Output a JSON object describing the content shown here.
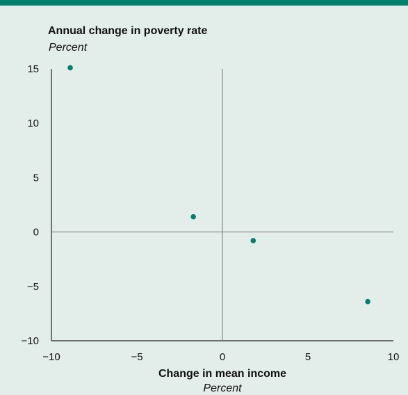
{
  "colors": {
    "background": "#e3edea",
    "accent": "#00826f",
    "axis": "#777777"
  },
  "chart_data": {
    "type": "scatter",
    "title": "Annual change in poverty rate",
    "y_unit": "Percent",
    "xlabel": "Change in mean income",
    "x_unit": "Percent",
    "xlim": [
      -10,
      10
    ],
    "ylim": [
      -10,
      15
    ],
    "x_ticks": [
      -10,
      -5,
      0,
      5,
      10
    ],
    "y_ticks": [
      15,
      10,
      5,
      0,
      -5,
      -10
    ],
    "x_tick_labels": [
      "−10",
      "−5",
      "0",
      "5",
      "10"
    ],
    "y_tick_labels": [
      "15",
      "10",
      "5",
      "0",
      "−5",
      "−10"
    ],
    "grid": false,
    "points": [
      {
        "x": -8.9,
        "y": 15.1
      },
      {
        "x": -1.7,
        "y": 1.4
      },
      {
        "x": 1.8,
        "y": -0.8
      },
      {
        "x": 8.5,
        "y": -6.4
      }
    ]
  }
}
